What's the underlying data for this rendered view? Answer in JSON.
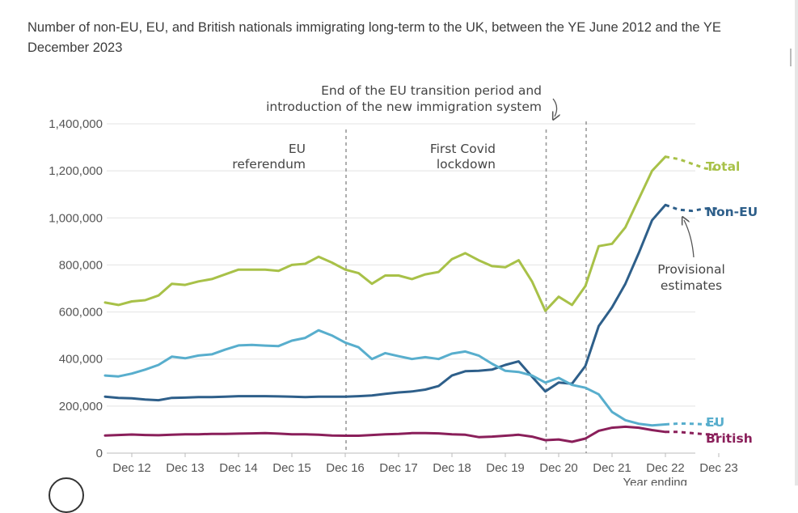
{
  "subtitle": "Number of non-EU, EU, and British nationals immigrating long-term to the UK, between the YE June 2012 and the YE December 2023",
  "chart_data": {
    "type": "line",
    "title": "Number of non-EU, EU, and British nationals immigrating long-term to the UK, between the YE June 2012 and the YE December 2023",
    "xlabel": "Year ending",
    "ylabel": "",
    "ylim": [
      0,
      1400000
    ],
    "yticks": [
      0,
      200000,
      400000,
      600000,
      800000,
      1000000,
      1200000,
      1400000
    ],
    "ytick_labels": [
      "0",
      "200,000",
      "400,000",
      "600,000",
      "800,000",
      "1,000,000",
      "1,200,000",
      "1,400,000"
    ],
    "xticks": [
      "Dec 12",
      "Dec 13",
      "Dec 14",
      "Dec 15",
      "Dec 16",
      "Dec 17",
      "Dec 18",
      "Dec 19",
      "Dec 20",
      "Dec 21",
      "Dec 22",
      "Dec 23"
    ],
    "grid": "horizontal",
    "x_start_index": -2,
    "x_end_index": 44,
    "provisional_start_index": 40,
    "series": [
      {
        "name": "Total",
        "color": "#a8c148",
        "values": [
          640000,
          630000,
          645000,
          650000,
          670000,
          720000,
          715000,
          730000,
          740000,
          760000,
          780000,
          780000,
          780000,
          775000,
          800000,
          805000,
          835000,
          810000,
          780000,
          765000,
          720000,
          755000,
          755000,
          740000,
          760000,
          770000,
          825000,
          850000,
          820000,
          795000,
          790000,
          820000,
          730000,
          605000,
          665000,
          630000,
          710000,
          880000,
          890000,
          960000,
          1080000,
          1200000,
          1260000,
          1250000,
          1230000,
          1210000,
          1205000
        ]
      },
      {
        "name": "Non-EU",
        "color": "#2e5f8a",
        "values": [
          240000,
          235000,
          233000,
          228000,
          225000,
          235000,
          236000,
          238000,
          238000,
          240000,
          242000,
          242000,
          242000,
          241000,
          240000,
          238000,
          240000,
          240000,
          240000,
          242000,
          245000,
          252000,
          258000,
          262000,
          270000,
          285000,
          330000,
          348000,
          350000,
          355000,
          375000,
          390000,
          325000,
          262000,
          300000,
          295000,
          370000,
          540000,
          620000,
          720000,
          850000,
          990000,
          1055000,
          1035000,
          1030000,
          1040000,
          1040000
        ]
      },
      {
        "name": "EU",
        "color": "#58aecd",
        "values": [
          330000,
          326000,
          338000,
          355000,
          375000,
          410000,
          403000,
          415000,
          420000,
          440000,
          458000,
          460000,
          457000,
          455000,
          478000,
          490000,
          522000,
          500000,
          470000,
          450000,
          400000,
          425000,
          412000,
          400000,
          408000,
          400000,
          423000,
          432000,
          415000,
          380000,
          350000,
          345000,
          330000,
          300000,
          320000,
          290000,
          278000,
          250000,
          175000,
          140000,
          125000,
          118000,
          122000,
          126000,
          125000,
          122000,
          125000
        ]
      },
      {
        "name": "British",
        "color": "#8a1f5a",
        "values": [
          75000,
          77000,
          79000,
          77000,
          76000,
          78000,
          80000,
          80000,
          82000,
          82000,
          83000,
          84000,
          85000,
          83000,
          80000,
          80000,
          78000,
          75000,
          74000,
          74000,
          77000,
          80000,
          82000,
          85000,
          85000,
          84000,
          80000,
          78000,
          68000,
          70000,
          74000,
          78000,
          70000,
          55000,
          58000,
          48000,
          62000,
          95000,
          108000,
          112000,
          108000,
          98000,
          90000,
          90000,
          85000,
          80000,
          80000
        ]
      }
    ],
    "annotations": [
      {
        "label": [
          "EU",
          "referendum"
        ],
        "at_index": 16
      },
      {
        "label": [
          "First Covid",
          "lockdown"
        ],
        "at_index": 31
      },
      {
        "label": [
          "End of the EU transition period and",
          "introduction of the new immigration system"
        ],
        "at_index": 34
      },
      {
        "label": [
          "Provisional",
          "estimates"
        ]
      }
    ]
  }
}
